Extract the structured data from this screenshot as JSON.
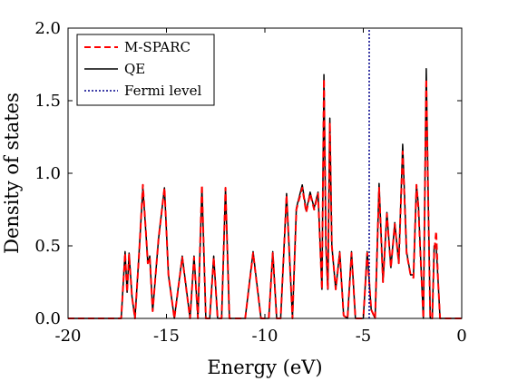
{
  "chart_data": {
    "type": "line",
    "xlabel": "Energy (eV)",
    "ylabel": "Density of states",
    "xlim": [
      -20,
      0
    ],
    "ylim": [
      0,
      2.0
    ],
    "xticks": [
      -20,
      -15,
      -10,
      -5,
      0
    ],
    "xtick_labels": [
      "-20",
      "-15",
      "-10",
      "-5",
      "0"
    ],
    "yticks": [
      0,
      0.5,
      1.0,
      1.5,
      2.0
    ],
    "ytick_labels": [
      "0.0",
      "0.5",
      "1.0",
      "1.5",
      "2.0"
    ],
    "legend_position": "top-left",
    "grid": false,
    "fermi_level": -4.7,
    "series": [
      {
        "name": "M-SPARC",
        "style": "dashed",
        "color": "#ff0000",
        "x": [
          -20,
          -17.3,
          -17.1,
          -17.0,
          -16.9,
          -16.75,
          -16.6,
          -16.4,
          -16.2,
          -16.0,
          -15.95,
          -15.85,
          -15.7,
          -15.4,
          -15.1,
          -14.9,
          -14.6,
          -14.2,
          -13.8,
          -13.6,
          -13.4,
          -13.2,
          -13.0,
          -12.8,
          -12.6,
          -12.4,
          -12.2,
          -12.0,
          -11.8,
          -11.6,
          -11.4,
          -11.2,
          -11.0,
          -10.6,
          -10.2,
          -10.0,
          -9.8,
          -9.6,
          -9.4,
          -9.2,
          -8.9,
          -8.6,
          -8.4,
          -8.1,
          -7.9,
          -7.7,
          -7.5,
          -7.3,
          -7.1,
          -7.0,
          -6.9,
          -6.8,
          -6.7,
          -6.6,
          -6.4,
          -6.2,
          -6.0,
          -5.8,
          -5.6,
          -5.4,
          -5.2,
          -5.0,
          -4.8,
          -4.6,
          -4.4,
          -4.2,
          -4.0,
          -3.8,
          -3.6,
          -3.4,
          -3.2,
          -3.0,
          -2.8,
          -2.6,
          -2.45,
          -2.3,
          -2.2,
          -2.05,
          -1.95,
          -1.8,
          -1.7,
          -1.6,
          -1.5,
          -1.4,
          -1.3,
          -1.2,
          -1.1,
          -1.0,
          -0.8,
          -0.6,
          -0.4,
          -0.2,
          0.0
        ],
        "y": [
          0.0,
          0.0,
          0.45,
          0.18,
          0.44,
          0.15,
          0.0,
          0.42,
          0.92,
          0.5,
          0.38,
          0.42,
          0.05,
          0.55,
          0.9,
          0.3,
          0.0,
          0.42,
          0.0,
          0.42,
          0.0,
          0.92,
          0.0,
          0.0,
          0.42,
          0.0,
          0.0,
          0.9,
          0.0,
          0.0,
          0.0,
          0.0,
          0.0,
          0.45,
          0.0,
          0.0,
          0.0,
          0.45,
          0.0,
          0.0,
          0.85,
          0.0,
          0.75,
          0.9,
          0.73,
          0.86,
          0.75,
          0.86,
          0.2,
          1.65,
          0.5,
          0.2,
          1.35,
          0.5,
          0.2,
          0.45,
          0.02,
          0.0,
          0.45,
          0.0,
          0.0,
          0.0,
          0.45,
          0.06,
          0.0,
          0.9,
          0.25,
          0.72,
          0.35,
          0.65,
          0.38,
          1.15,
          0.45,
          0.3,
          0.28,
          0.92,
          0.75,
          0.3,
          0.0,
          1.65,
          0.8,
          0.0,
          0.0,
          0.45,
          0.6,
          0.25,
          0.0,
          0.0,
          0.0,
          0.0,
          0.0,
          0.0,
          0.0
        ]
      },
      {
        "name": "QE",
        "style": "solid",
        "color": "#000000",
        "x": [
          -20,
          -17.3,
          -17.1,
          -17.0,
          -16.9,
          -16.75,
          -16.6,
          -16.4,
          -16.2,
          -16.0,
          -15.95,
          -15.85,
          -15.7,
          -15.4,
          -15.1,
          -14.9,
          -14.6,
          -14.2,
          -13.8,
          -13.6,
          -13.4,
          -13.2,
          -13.0,
          -12.8,
          -12.6,
          -12.4,
          -12.2,
          -12.0,
          -11.8,
          -11.6,
          -11.4,
          -11.2,
          -11.0,
          -10.6,
          -10.2,
          -10.0,
          -9.8,
          -9.6,
          -9.4,
          -9.2,
          -8.9,
          -8.6,
          -8.4,
          -8.1,
          -7.9,
          -7.7,
          -7.5,
          -7.3,
          -7.1,
          -7.0,
          -6.9,
          -6.8,
          -6.7,
          -6.6,
          -6.4,
          -6.2,
          -6.0,
          -5.8,
          -5.6,
          -5.4,
          -5.2,
          -5.0,
          -4.8,
          -4.6,
          -4.4,
          -4.2,
          -4.0,
          -3.8,
          -3.6,
          -3.4,
          -3.2,
          -3.0,
          -2.8,
          -2.6,
          -2.45,
          -2.3,
          -2.2,
          -2.05,
          -1.95,
          -1.8,
          -1.7,
          -1.6,
          -1.5,
          -1.4,
          -1.3,
          -1.2,
          -1.1,
          -1.0,
          -0.8,
          -0.6,
          -0.4,
          -0.2,
          0.0
        ],
        "y": [
          0.0,
          0.0,
          0.46,
          0.18,
          0.45,
          0.15,
          0.0,
          0.43,
          0.9,
          0.5,
          0.38,
          0.43,
          0.05,
          0.55,
          0.9,
          0.3,
          0.0,
          0.43,
          0.0,
          0.43,
          0.0,
          0.9,
          0.0,
          0.0,
          0.43,
          0.0,
          0.0,
          0.9,
          0.0,
          0.0,
          0.0,
          0.0,
          0.0,
          0.46,
          0.0,
          0.0,
          0.0,
          0.46,
          0.0,
          0.0,
          0.86,
          0.0,
          0.76,
          0.92,
          0.74,
          0.87,
          0.76,
          0.87,
          0.2,
          1.68,
          0.5,
          0.2,
          1.38,
          0.5,
          0.2,
          0.46,
          0.02,
          0.0,
          0.46,
          0.0,
          0.0,
          0.0,
          0.46,
          0.06,
          0.0,
          0.93,
          0.25,
          0.73,
          0.35,
          0.66,
          0.38,
          1.2,
          0.46,
          0.3,
          0.3,
          0.92,
          0.78,
          0.3,
          0.0,
          1.72,
          0.8,
          0.0,
          0.0,
          0.5,
          0.5,
          0.25,
          0.0,
          0.0,
          0.0,
          0.0,
          0.0,
          0.0,
          0.0
        ]
      },
      {
        "name": "Fermi level",
        "style": "dotted",
        "color": "#00008b",
        "x": [
          -4.7,
          -4.7
        ],
        "y": [
          0,
          2.0
        ]
      }
    ]
  }
}
